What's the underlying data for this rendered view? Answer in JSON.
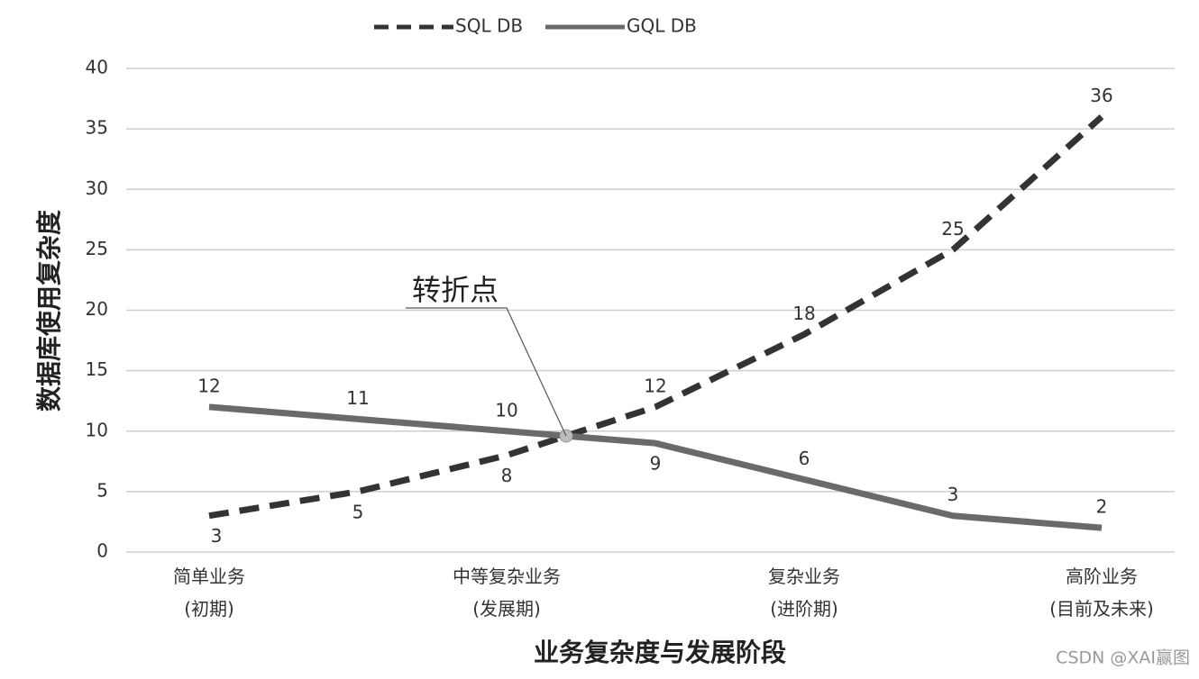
{
  "chart_data": {
    "type": "line",
    "x_label": "业务复杂度与发展阶段",
    "y_label": "数据库使用复杂度",
    "categories": [
      "简单业务\n(初期)",
      null,
      "中等复杂业务\n(发展期)",
      null,
      "复杂业务\n(进阶期)",
      null,
      "高阶业务\n(目前及未来)"
    ],
    "series": [
      {
        "name": "SQL DB",
        "color": "#333333",
        "dashed": true,
        "values": [
          3,
          5,
          8,
          12,
          18,
          25,
          36
        ]
      },
      {
        "name": "GQL DB",
        "color": "#6a6a6a",
        "dashed": false,
        "values": [
          12,
          11,
          10,
          9,
          6,
          3,
          2
        ]
      }
    ],
    "ylim": [
      0,
      40
    ],
    "yticks": [
      0,
      5,
      10,
      15,
      20,
      25,
      30,
      35,
      40
    ],
    "grid": true,
    "legend": "top",
    "annotation": "转折点",
    "watermark": "CSDN @XAI赢图"
  }
}
